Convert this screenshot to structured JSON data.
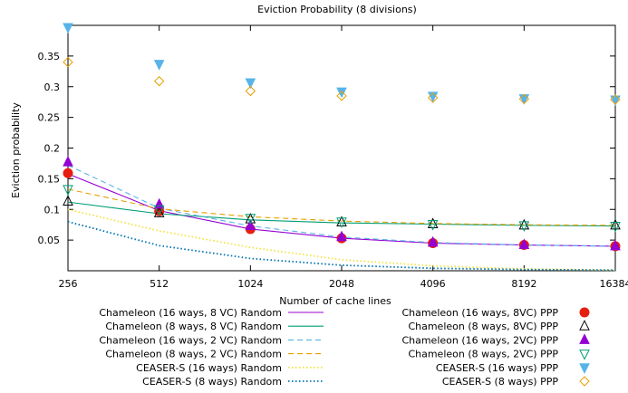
{
  "chart_data": {
    "type": "line",
    "title": "Eviction Probability (8 divisions)",
    "xlabel": "Number of cache lines",
    "ylabel": "Eviction probability",
    "x_scale": "log2",
    "categories": [
      "256",
      "512",
      "1024",
      "2048",
      "4096",
      "8192",
      "16384"
    ],
    "x": [
      256,
      512,
      1024,
      2048,
      4096,
      8192,
      16384
    ],
    "ylim": [
      0,
      0.4
    ],
    "yticks": [
      0.05,
      0.1,
      0.15,
      0.2,
      0.25,
      0.3,
      0.35
    ],
    "ytick_labels": [
      "0.05",
      "0.1",
      "0.15",
      "0.2",
      "0.25",
      "0.3",
      "0.35"
    ],
    "grid": false,
    "legend_placement": "bottom",
    "series": [
      {
        "name": "Chameleon (16 ways, 8 VC) Random",
        "style": "line",
        "dash": "solid",
        "color": "#9400d3",
        "values": [
          0.158,
          0.098,
          0.068,
          0.053,
          0.045,
          0.042,
          0.04
        ]
      },
      {
        "name": "Chameleon (8 ways, 8 VC) Random",
        "style": "line",
        "dash": "solid",
        "color": "#009e73",
        "values": [
          0.112,
          0.093,
          0.083,
          0.078,
          0.076,
          0.074,
          0.073
        ]
      },
      {
        "name": "Chameleon (16 ways, 2 VC) Random",
        "style": "line",
        "dash": "dashed",
        "color": "#56b4e9",
        "values": [
          0.172,
          0.102,
          0.073,
          0.055,
          0.046,
          0.042,
          0.04
        ]
      },
      {
        "name": "Chameleon (8 ways, 2 VC) Random",
        "style": "line",
        "dash": "dashed",
        "color": "#e69f00",
        "values": [
          0.133,
          0.101,
          0.088,
          0.081,
          0.077,
          0.075,
          0.074
        ]
      },
      {
        "name": "CEASER-S (16 ways) Random",
        "style": "line",
        "dash": "dotted",
        "color": "#f0e442",
        "values": [
          0.1,
          0.065,
          0.038,
          0.018,
          0.008,
          0.003,
          0.001
        ]
      },
      {
        "name": "CEASER-S (8 ways) Random",
        "style": "line",
        "dash": "dotted",
        "color": "#0072b2",
        "values": [
          0.08,
          0.041,
          0.02,
          0.009,
          0.004,
          0.002,
          0.001
        ]
      },
      {
        "name": "Chameleon (16 ways, 8VC) PPP",
        "style": "marker",
        "marker": "circle-filled",
        "color": "#e51e10",
        "values": [
          0.159,
          0.097,
          0.068,
          0.053,
          0.045,
          0.042,
          0.04
        ]
      },
      {
        "name": "Chameleon (8 ways, 8VC) PPP",
        "style": "marker",
        "marker": "triangle-up-open",
        "color": "#000000",
        "values": [
          0.113,
          0.094,
          0.084,
          0.079,
          0.076,
          0.074,
          0.074
        ]
      },
      {
        "name": "Chameleon (16 ways, 2VC) PPP",
        "style": "marker",
        "marker": "triangle-up-filled",
        "color": "#9400d3",
        "values": [
          0.177,
          0.108,
          0.073,
          0.055,
          0.046,
          0.042,
          0.04
        ]
      },
      {
        "name": "Chameleon (8 ways, 2VC) PPP",
        "style": "marker",
        "marker": "triangle-down-open",
        "color": "#009e73",
        "values": [
          0.133,
          0.1,
          0.086,
          0.08,
          0.076,
          0.074,
          0.073
        ]
      },
      {
        "name": "CEASER-S (16 ways) PPP",
        "style": "marker",
        "marker": "triangle-down-filled",
        "color": "#56b4e9",
        "values": [
          0.397,
          0.337,
          0.307,
          0.292,
          0.285,
          0.281,
          0.279
        ]
      },
      {
        "name": "CEASER-S (8 ways) PPP",
        "style": "marker",
        "marker": "diamond-open",
        "color": "#e69f00",
        "values": [
          0.34,
          0.309,
          0.293,
          0.285,
          0.282,
          0.28,
          0.279
        ]
      }
    ]
  }
}
